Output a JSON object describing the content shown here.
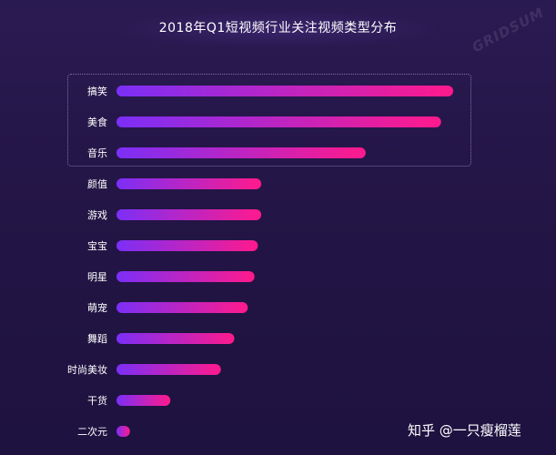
{
  "chart_data": {
    "type": "bar",
    "orientation": "horizontal",
    "title": "2018年Q1短视频行业关注视频类型分布",
    "categories": [
      "搞笑",
      "美食",
      "音乐",
      "颜值",
      "游戏",
      "宝宝",
      "明星",
      "萌宠",
      "舞蹈",
      "时尚美妆",
      "干货",
      "二次元"
    ],
    "values": [
      100,
      96.4,
      74,
      43,
      43,
      42,
      41,
      39,
      35,
      31,
      16,
      4
    ],
    "highlighted": [
      "搞笑",
      "美食",
      "音乐"
    ],
    "xlim": [
      0,
      100
    ],
    "grid": false,
    "legend": false,
    "colors": {
      "bar_start": "#7b2ff7",
      "bar_end": "#ff1a8c",
      "background": "#231545"
    }
  },
  "watermark": "GRIDSUM",
  "credit": "知乎 @一只瘦榴莲"
}
